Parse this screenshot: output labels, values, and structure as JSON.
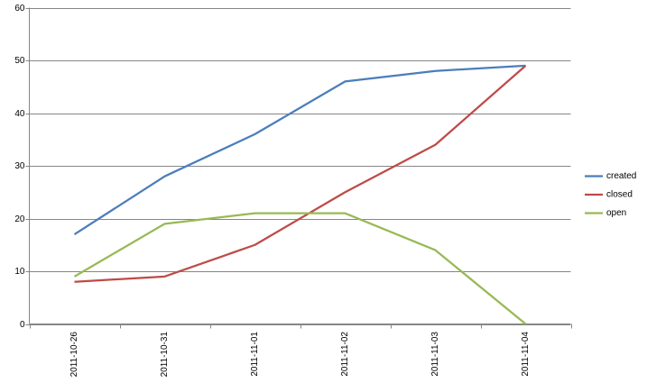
{
  "chart_data": {
    "type": "line",
    "categories": [
      "2011-10-26",
      "2011-10-31",
      "2011-11-01",
      "2011-11-02",
      "2011-11-03",
      "2011-11-04"
    ],
    "series": [
      {
        "name": "created",
        "color": "#4a7ebb",
        "values": [
          17,
          28,
          36,
          46,
          48,
          49
        ]
      },
      {
        "name": "closed",
        "color": "#be4b48",
        "values": [
          8,
          9,
          15,
          25,
          34,
          49
        ]
      },
      {
        "name": "open",
        "color": "#98b954",
        "values": [
          9,
          19,
          21,
          21,
          14,
          0
        ]
      }
    ],
    "ylim": [
      0,
      60
    ],
    "yticks": [
      0,
      10,
      20,
      30,
      40,
      50,
      60
    ],
    "grid": true,
    "legend": "right"
  }
}
